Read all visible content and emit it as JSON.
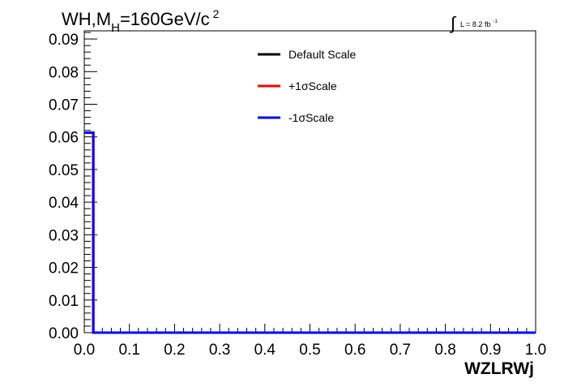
{
  "chart_data": {
    "type": "line",
    "title_main": "WH,M",
    "title_sub": "H",
    "title_rest": "=160GeV/c",
    "title_sup": "2",
    "lumi_text": "L = 8.2 fb",
    "lumi_sup": "-1",
    "xlabel": "WZLRWj",
    "ylabel": "",
    "xlim": [
      0.0,
      1.0
    ],
    "ylim": [
      0.0,
      0.0925
    ],
    "x_ticks": [
      "0.0",
      "0.1",
      "0.2",
      "0.3",
      "0.4",
      "0.5",
      "0.6",
      "0.7",
      "0.8",
      "0.9",
      "1.0"
    ],
    "y_ticks": [
      "0.00",
      "0.01",
      "0.02",
      "0.03",
      "0.04",
      "0.05",
      "0.06",
      "0.07",
      "0.08",
      "0.09"
    ],
    "legend_position": "top-right",
    "series": [
      {
        "name": "Default Scale",
        "color": "#000000",
        "x": [
          0.0,
          0.02,
          0.02,
          1.0
        ],
        "y": [
          0.0613,
          0.0613,
          0.0,
          0.0
        ]
      },
      {
        "name": "+1σScale",
        "color": "#ff0000",
        "x": [
          0.0,
          0.02,
          0.02,
          1.0
        ],
        "y": [
          0.0613,
          0.0613,
          0.0,
          0.0
        ]
      },
      {
        "name": "-1σScale",
        "color": "#0000ff",
        "x": [
          0.0,
          0.02,
          0.02,
          1.0
        ],
        "y": [
          0.0613,
          0.0613,
          0.0,
          0.0
        ]
      }
    ]
  }
}
